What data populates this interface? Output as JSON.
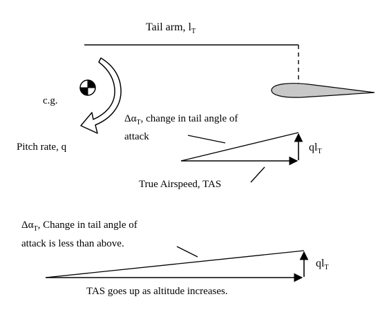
{
  "diagram": {
    "top": {
      "tail_arm_label": "Tail arm, l",
      "tail_arm_sub": "T",
      "cg_label": "c.g.",
      "pitch_rate_label": "Pitch rate, q",
      "delta_alpha_label": "Δα",
      "delta_alpha_sub": "T",
      "delta_alpha_text_line1": ", change in tail angle of",
      "delta_alpha_text_line2": "attack",
      "ql_label": "ql",
      "ql_sub": "T",
      "tas_label": "True Airspeed, TAS"
    },
    "bottom": {
      "delta_alpha_label": "Δα",
      "delta_alpha_sub": "T",
      "delta_alpha_text_line1": ", Change in tail angle of",
      "delta_alpha_text_line2": "attack is less than above.",
      "ql_label": "ql",
      "ql_sub": "T",
      "tas_label": "TAS goes up as altitude increases."
    },
    "colors": {
      "ink": "#000000",
      "airfoil_fill": "#c8c8c8",
      "pitch_arrow_fill": "#ffffff"
    }
  }
}
